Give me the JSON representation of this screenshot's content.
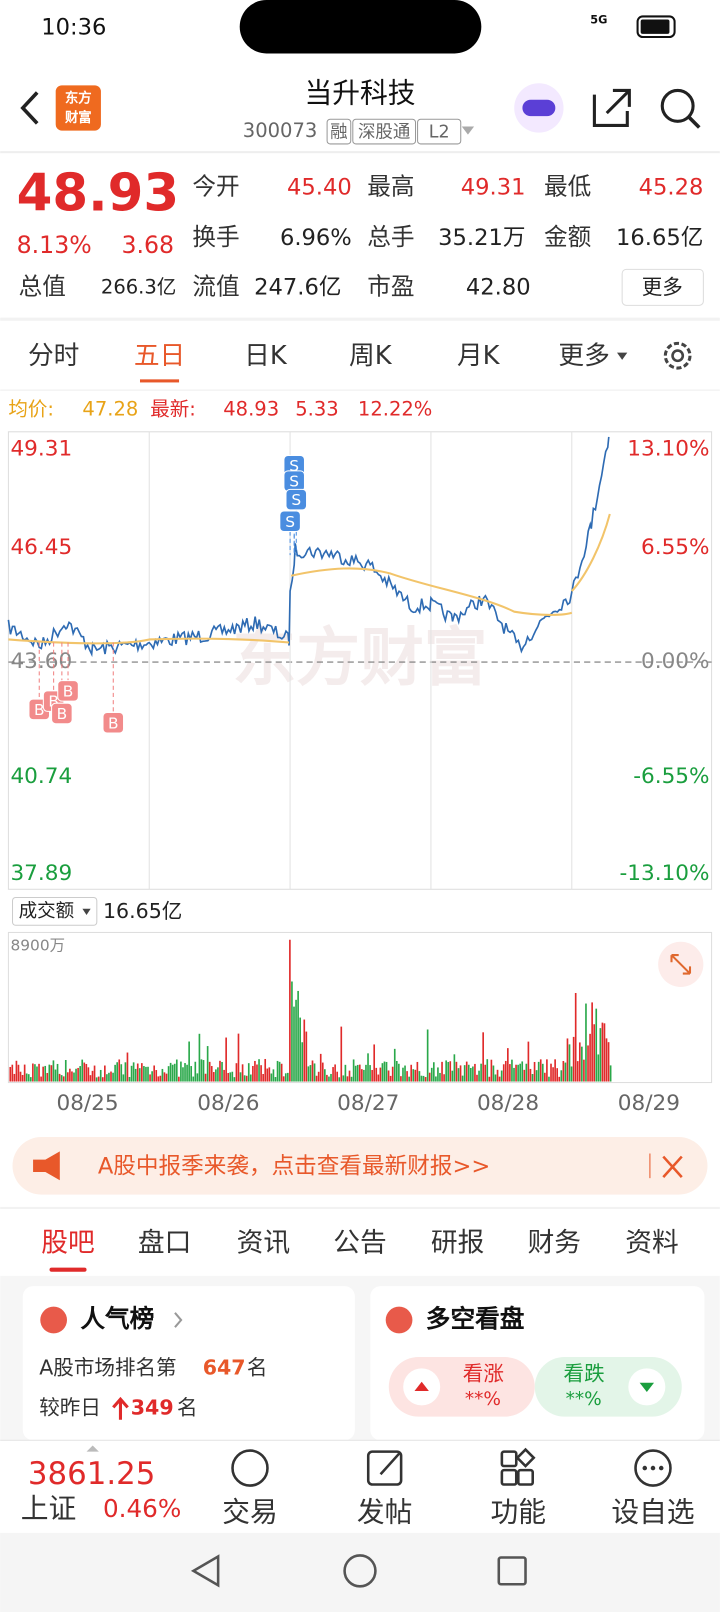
{
  "status": {
    "time": "10:36",
    "network": "5G"
  },
  "header": {
    "logo": [
      "东方",
      "财富"
    ],
    "title": "当升科技",
    "code": "300073",
    "tags": [
      "融",
      "深股通",
      "L2"
    ]
  },
  "quote": {
    "price": "48.93",
    "change_pct": "8.13%",
    "change": "3.68",
    "fields": [
      {
        "label": "今开",
        "value": "45.40"
      },
      {
        "label": "最高",
        "value": "49.31"
      },
      {
        "label": "最低",
        "value": "45.28"
      },
      {
        "label": "换手",
        "value": "6.96%"
      },
      {
        "label": "总手",
        "value": "35.21万"
      },
      {
        "label": "金额",
        "value": "16.65亿"
      },
      {
        "label": "总值",
        "value": "266.3亿"
      },
      {
        "label": "流值",
        "value": "247.6亿"
      },
      {
        "label": "市盈",
        "value": "42.80"
      }
    ],
    "more": "更多"
  },
  "tabs": [
    "分时",
    "五日",
    "日K",
    "周K",
    "月K",
    "更多"
  ],
  "chart": {
    "avg_label": "均价:",
    "avg": "47.28",
    "latest_label": "最新:",
    "latest": "48.93",
    "change": "5.33",
    "change_pct": "12.22%",
    "left_labels": [
      "49.31",
      "46.45",
      "43.60",
      "40.74",
      "37.89"
    ],
    "right_labels": [
      "13.10%",
      "6.55%",
      "0.00%",
      "-6.55%",
      "-13.10%"
    ],
    "watermark": "东方财富",
    "buy": "B",
    "sell": "S"
  },
  "volume": {
    "label": "成交额",
    "value": "16.65亿",
    "max": "8900万"
  },
  "dates": [
    "08/25",
    "08/26",
    "08/27",
    "08/28",
    "08/29"
  ],
  "banner": "A股中报季来袭，点击查看最新财报>>",
  "sections": [
    "股吧",
    "盘口",
    "资讯",
    "公告",
    "研报",
    "财务",
    "资料"
  ],
  "cards": {
    "popularity": {
      "title": "人气榜",
      "rank_text": "A股市场排名第",
      "rank": "647",
      "unit": "名",
      "compare": "较昨日",
      "delta": "349"
    },
    "sentiment": {
      "title": "多空看盘",
      "up": "看涨",
      "down": "看跌",
      "up_value": "**%",
      "down_value": "**%"
    }
  },
  "bottom": {
    "index_value": "3861.25",
    "index_name": "上证",
    "index_pct": "0.46%",
    "nav": [
      "交易",
      "发帖",
      "功能",
      "设自选"
    ]
  }
}
